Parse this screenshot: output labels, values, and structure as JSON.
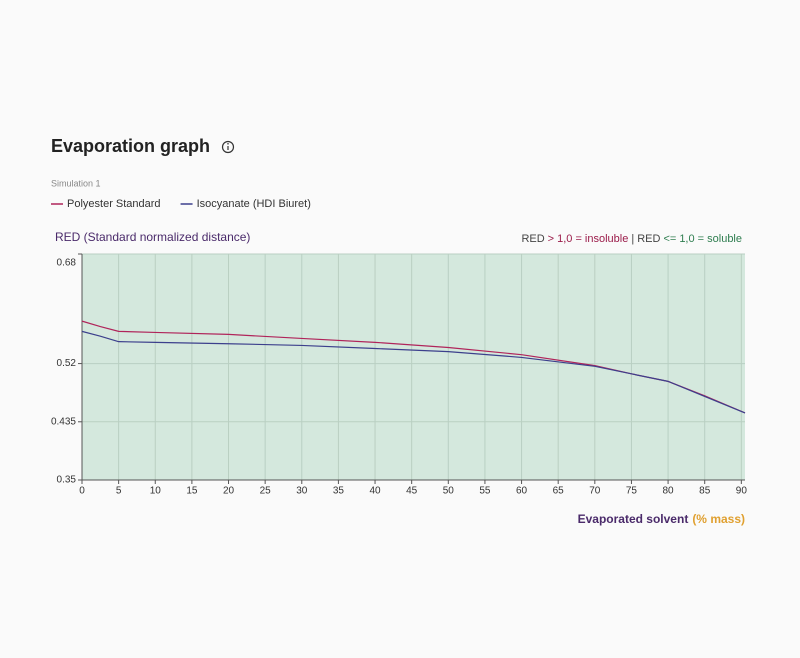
{
  "chart_data": {
    "type": "line",
    "title": "Evaporation graph",
    "subtitle": "Simulation 1",
    "y_label": "RED (Standard normalized distance)",
    "annotation": [
      {
        "text": "RED",
        "color": "#444444"
      },
      {
        "text": ">",
        "color": "#9b1c4a"
      },
      {
        "text": "1,0 = insoluble",
        "color": "#9b1c4a"
      },
      {
        "text": "|",
        "color": "#444444"
      },
      {
        "text": "RED",
        "color": "#444444"
      },
      {
        "text": "<=",
        "color": "#2e7d4f"
      },
      {
        "text": "1,0 = soluble",
        "color": "#2e7d4f"
      }
    ],
    "x_label": "Evaporated solvent",
    "x_label_unit": "(% mass)",
    "x": [
      0,
      2.5,
      5,
      10,
      20,
      30,
      40,
      50,
      60,
      70,
      75,
      80,
      85,
      90.5
    ],
    "series": [
      {
        "name": "Polyester Standard",
        "color": "#b0245a",
        "values": [
          0.582,
          0.574,
          0.567,
          0.5655,
          0.5626,
          0.5567,
          0.551,
          0.5435,
          0.533,
          0.517,
          0.505,
          0.494,
          0.473,
          0.448
        ]
      },
      {
        "name": "Isocyanate (HDI Biuret)",
        "color": "#3c3f8c",
        "values": [
          0.567,
          0.56,
          0.552,
          0.551,
          0.549,
          0.5465,
          0.542,
          0.5375,
          0.529,
          0.516,
          0.505,
          0.494,
          0.472,
          0.448
        ]
      }
    ],
    "xlim": [
      0,
      90.5
    ],
    "xticks": [
      0,
      5,
      10,
      15,
      20,
      25,
      30,
      35,
      40,
      45,
      50,
      55,
      60,
      65,
      70,
      75,
      80,
      85,
      90
    ],
    "ylim": [
      0.35,
      0.68
    ],
    "yticks": [
      0.35,
      0.435,
      0.52,
      0.68
    ],
    "grid": true,
    "plot_background": "#d4e8dd"
  }
}
